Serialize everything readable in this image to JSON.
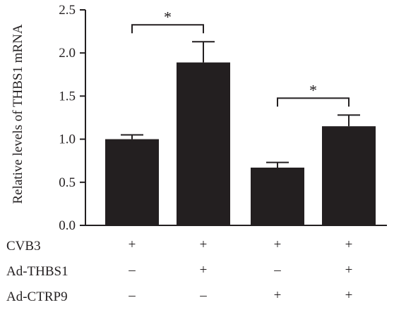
{
  "chart_data": {
    "type": "bar",
    "ylabel": "Relative levels of THBS1 mRNA",
    "ylim": [
      0,
      2.5
    ],
    "yticks": [
      "0.0",
      "0.5",
      "1.0",
      "1.5",
      "2.0",
      "2.5"
    ],
    "grid": false,
    "legend": "none",
    "bar_color": "#231f20",
    "values": [
      1.0,
      1.89,
      0.67,
      1.15
    ],
    "errors": [
      0.05,
      0.24,
      0.06,
      0.13
    ],
    "condition_rows": [
      {
        "label": "CVB3",
        "signs": [
          "+",
          "+",
          "+",
          "+"
        ]
      },
      {
        "label": "Ad-THBS1",
        "signs": [
          "–",
          "+",
          "–",
          "+"
        ]
      },
      {
        "label": "Ad-CTRP9",
        "signs": [
          "–",
          "–",
          "+",
          "+"
        ]
      }
    ],
    "significance": [
      {
        "from": 0,
        "to": 1,
        "label": "*"
      },
      {
        "from": 2,
        "to": 3,
        "label": "*"
      }
    ]
  }
}
